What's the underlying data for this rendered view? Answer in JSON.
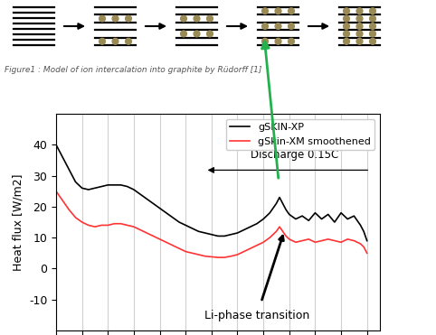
{
  "diagram": {
    "caption": "Figure1 : Model of ion intercalation into graphite by Rüdorff [1]"
  },
  "chart_data": {
    "type": "line",
    "ylabel": "Heat flux [W/m2]",
    "x": [
      0,
      2,
      4,
      6,
      8,
      10,
      12,
      14,
      16,
      18,
      20,
      22,
      24,
      26,
      28,
      30,
      32,
      34,
      36,
      38,
      40,
      42,
      44,
      46,
      48,
      50,
      52,
      54,
      56,
      58,
      60,
      62,
      64,
      66,
      67,
      68,
      69,
      70,
      71,
      72,
      74,
      76,
      78,
      80,
      82,
      84,
      86,
      88,
      90,
      92,
      94,
      95,
      96
    ],
    "xlim": [
      0,
      100
    ],
    "xticks": [
      0,
      8,
      16,
      24,
      32,
      40,
      48,
      56,
      64,
      72,
      80,
      88,
      96
    ],
    "ylim": [
      -20,
      50
    ],
    "yticks": [
      -10,
      0,
      10,
      20,
      30,
      40
    ],
    "grid": true,
    "legend": "upper right",
    "tick_labels": "y",
    "series": [
      {
        "name": "gSKIN-XP",
        "color": "#000000",
        "values": [
          40,
          36,
          32,
          28,
          26,
          25.5,
          26,
          26.5,
          27,
          27,
          27,
          26.5,
          25.5,
          24,
          22.5,
          21,
          19.5,
          18,
          16.5,
          15,
          14,
          13,
          12,
          11.5,
          11,
          10.5,
          10.5,
          11,
          11.5,
          12.5,
          13.5,
          14.5,
          16,
          18,
          19.5,
          21,
          23,
          21,
          19,
          17.5,
          16,
          17,
          15.5,
          18,
          16,
          17.5,
          15,
          18,
          16,
          17,
          14,
          12,
          9
        ]
      },
      {
        "name": "gSkin-XM smoothened",
        "color": "#ff3333",
        "values": [
          25,
          22,
          19,
          16.5,
          15,
          14,
          13.5,
          14,
          14,
          14.5,
          14.5,
          14,
          13.5,
          12.5,
          11.5,
          10.5,
          9.5,
          8.5,
          7.5,
          6.5,
          5.5,
          5,
          4.5,
          4,
          3.8,
          3.6,
          3.6,
          4,
          4.5,
          5.5,
          6.5,
          7.5,
          8.5,
          10,
          11,
          12,
          13.5,
          12,
          10.5,
          9.5,
          8.5,
          9,
          9.5,
          8.5,
          9,
          9.5,
          9,
          8.5,
          9.5,
          9,
          8,
          7,
          5
        ]
      }
    ],
    "annotations": [
      "Discharge 0.15C",
      "Li-phase transition"
    ]
  }
}
